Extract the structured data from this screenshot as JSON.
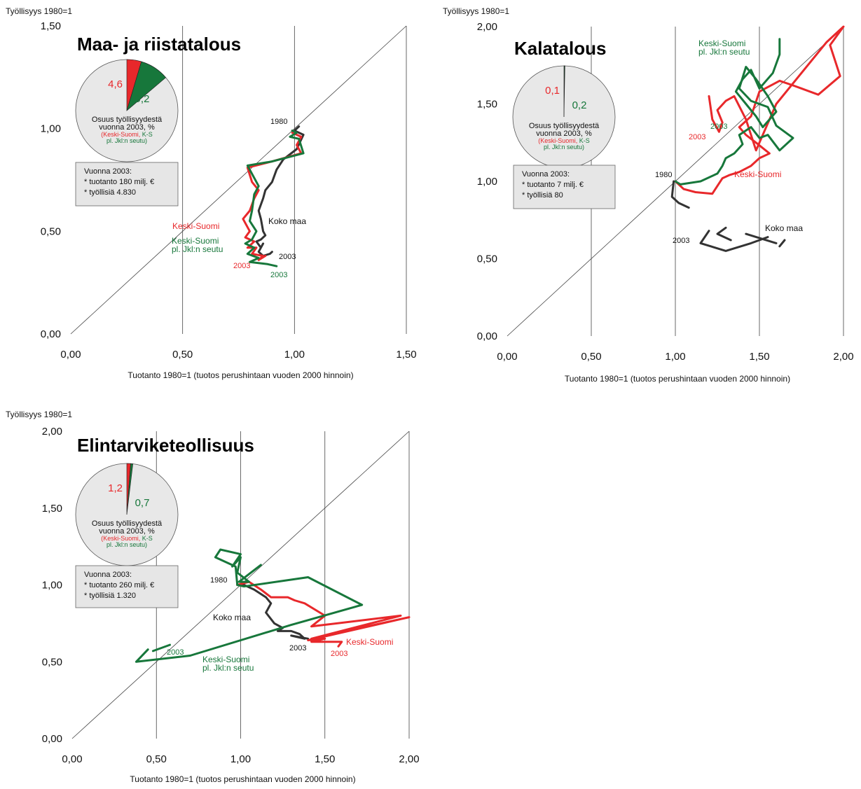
{
  "colors": {
    "red": "#e8282b",
    "green": "#17773b",
    "black": "#333333",
    "pie_bg": "#e8e8e8",
    "info_bg": "#e6e6e6"
  },
  "chart_data": [
    {
      "type": "line",
      "title": "Maa- ja riistatalous",
      "ylabel": "Työllisyys 1980=1",
      "xlabel": "Tuotanto 1980=1 (tuotos perushintaan vuoden 2000 hinnoin)",
      "xlim": [
        0,
        1.5
      ],
      "ylim": [
        0,
        1.5
      ],
      "xticks": [
        "0,00",
        "0,50",
        "1,00",
        "1,50"
      ],
      "yticks": [
        "0,00",
        "0,50",
        "1,00",
        "1,50"
      ],
      "series": [
        {
          "name": "Koko maa",
          "color": "black",
          "start_label": "1980",
          "end_label": "2003",
          "x": [
            1.02,
            1.0,
            1.04,
            1.01,
            0.95,
            0.92,
            0.9,
            0.87,
            0.86,
            0.84,
            0.85,
            0.86,
            0.87,
            0.85,
            0.83,
            0.85,
            0.86,
            0.84,
            0.86,
            0.89,
            0.9
          ],
          "y": [
            1.01,
            0.99,
            0.97,
            0.9,
            0.85,
            0.8,
            0.74,
            0.7,
            0.66,
            0.6,
            0.56,
            0.5,
            0.48,
            0.46,
            0.45,
            0.42,
            0.44,
            0.4,
            0.38,
            0.39,
            0.4
          ]
        },
        {
          "name": "Keski-Suomi",
          "color": "red",
          "end_label": "2003",
          "x": [
            0.99,
            1.03,
            1.01,
            1.03,
            0.9,
            0.79,
            0.81,
            0.84,
            0.82,
            0.8,
            0.77,
            0.8,
            0.78,
            0.82,
            0.79,
            0.83,
            0.81,
            0.86,
            0.84,
            0.87
          ],
          "y": [
            0.98,
            0.96,
            0.92,
            0.88,
            0.84,
            0.81,
            0.74,
            0.7,
            0.66,
            0.6,
            0.56,
            0.5,
            0.47,
            0.45,
            0.42,
            0.42,
            0.39,
            0.38,
            0.36,
            0.38
          ]
        },
        {
          "name": "Keski-Suomi\npl. Jkl:n seutu",
          "color": "green",
          "end_label": "2003",
          "x": [
            0.99,
            1.01,
            0.98,
            1.02,
            1.04,
            0.9,
            0.79,
            0.84,
            0.82,
            0.81,
            0.8,
            0.83,
            0.81,
            0.78,
            0.82,
            0.79,
            0.84,
            0.8,
            0.88,
            0.92
          ],
          "y": [
            0.99,
            0.98,
            0.96,
            0.95,
            0.88,
            0.84,
            0.82,
            0.72,
            0.68,
            0.6,
            0.55,
            0.5,
            0.46,
            0.44,
            0.42,
            0.39,
            0.37,
            0.35,
            0.34,
            0.33
          ]
        }
      ],
      "annotations": {
        "start_year": "1980",
        "koko_maa": "Koko maa",
        "keski_suomi": "Keski-Suomi",
        "keski_suomi_pl_line1": "Keski-Suomi",
        "keski_suomi_pl_line2": "pl. Jkl:n seutu",
        "black_end": "2003",
        "red_end": "2003",
        "green_end": "2003"
      },
      "pie": {
        "red_value": 4.6,
        "green_value": 9.2,
        "red_label": "4,6",
        "green_label": "9,2",
        "caption1": "Osuus työllisyydestä",
        "caption2": "vuonna 2003, %",
        "legend_red": "(Keski-Suomi,",
        "legend_green": "K-S",
        "legend_line2": "pl. Jkl:n seutu)"
      },
      "info": {
        "line1": "Vuonna 2003:",
        "line2": "* tuotanto 180 milj. €",
        "line3": "* työllisiä 4.830"
      }
    },
    {
      "type": "line",
      "title": "Kalatalous",
      "ylabel": "Työllisyys 1980=1",
      "xlabel": "Tuotanto 1980=1 (tuotos perushintaan vuoden 2000 hinnoin)",
      "xlim": [
        0,
        2
      ],
      "ylim": [
        0,
        2
      ],
      "xticks": [
        "0,00",
        "0,50",
        "1,00",
        "1,50",
        "2,00"
      ],
      "yticks": [
        "0,00",
        "0,50",
        "1,00",
        "1,50",
        "2,00"
      ],
      "series": [
        {
          "name": "Keski-Suomi",
          "color": "red",
          "end_label": "2003",
          "x": [
            1.0,
            1.05,
            1.12,
            1.22,
            1.28,
            1.32,
            1.38,
            1.45,
            1.5,
            1.56,
            1.48,
            1.42,
            1.38,
            1.45,
            1.5,
            1.62,
            1.7,
            1.85,
            1.98,
            1.92,
            2.0,
            1.9,
            1.6,
            1.48,
            1.45,
            1.42,
            1.35,
            1.3,
            1.25,
            1.28,
            1.26,
            1.22,
            1.2
          ],
          "y": [
            1.0,
            0.95,
            0.93,
            0.92,
            1.02,
            1.04,
            1.06,
            1.1,
            1.15,
            1.18,
            1.25,
            1.3,
            1.35,
            1.42,
            1.58,
            1.65,
            1.62,
            1.56,
            1.68,
            1.88,
            2.0,
            1.9,
            1.5,
            1.2,
            1.3,
            1.4,
            1.55,
            1.52,
            1.46,
            1.38,
            1.32,
            1.4,
            1.55
          ]
        },
        {
          "name": "Keski-Suomi\npl. Jkl:n seutu",
          "color": "green",
          "end_label": "2003",
          "x": [
            1.0,
            1.03,
            1.15,
            1.25,
            1.28,
            1.3,
            1.35,
            1.4,
            1.38,
            1.45,
            1.5,
            1.55,
            1.62,
            1.7,
            1.6,
            1.55,
            1.45,
            1.38,
            1.42,
            1.48,
            1.55,
            1.6,
            1.52,
            1.48,
            1.42,
            1.36,
            1.4,
            1.45,
            1.5,
            1.58,
            1.62,
            1.62
          ],
          "y": [
            1.0,
            0.98,
            1.0,
            1.05,
            1.1,
            1.15,
            1.18,
            1.24,
            1.3,
            1.35,
            1.28,
            1.3,
            1.2,
            1.28,
            1.36,
            1.48,
            1.52,
            1.6,
            1.74,
            1.66,
            1.55,
            1.45,
            1.35,
            1.42,
            1.5,
            1.58,
            1.66,
            1.72,
            1.6,
            1.7,
            1.82,
            1.92
          ]
        },
        {
          "name": "Koko maa",
          "color": "black",
          "start_label": "1980",
          "end_label": "2003",
          "x": [
            0.99,
            0.98,
            1.02,
            1.08,
            1.3,
            1.25,
            1.33,
            1.2,
            1.15,
            1.3,
            1.45,
            1.55,
            1.6,
            1.42,
            1.65,
            1.62
          ],
          "y": [
            1.0,
            0.9,
            0.86,
            0.83,
            0.7,
            0.66,
            0.62,
            0.68,
            0.6,
            0.55,
            0.6,
            0.64,
            0.6,
            0.66,
            0.62,
            0.58
          ],
          "breaks": [
            3,
            6,
            11,
            13
          ]
        }
      ],
      "annotations": {
        "start_year": "1980",
        "koko_maa": "Koko maa",
        "keski_suomi": "Keski-Suomi",
        "keski_suomi_pl_line1": "Keski-Suomi",
        "keski_suomi_pl_line2": "pl. Jkl:n seutu",
        "black_end": "2003",
        "red_end": "2003",
        "green_end": "2003"
      },
      "pie": {
        "red_value": 0.1,
        "green_value": 0.2,
        "red_label": "0,1",
        "green_label": "0,2",
        "caption1": "Osuus työllisyydestä",
        "caption2": "vuonna 2003, %",
        "legend_red": "(Keski-Suomi,",
        "legend_green": "K-S",
        "legend_line2": "pl. Jkl:n seutu)"
      },
      "info": {
        "line1": "Vuonna 2003:",
        "line2": "* tuotanto 7 milj. €",
        "line3": "* työllisiä 80"
      }
    },
    {
      "type": "line",
      "title": "Elintarviketeollisuus",
      "ylabel": "Työllisyys 1980=1",
      "xlabel": "Tuotanto 1980=1 (tuotos perushintaan vuoden 2000 hinnoin)",
      "xlim": [
        0,
        2
      ],
      "ylim": [
        0,
        2
      ],
      "xticks": [
        "0,00",
        "0,50",
        "1,00",
        "1,50",
        "2,00"
      ],
      "yticks": [
        "0,00",
        "0,50",
        "1,00",
        "1,50",
        "2,00"
      ],
      "series": [
        {
          "name": "Koko maa",
          "color": "black",
          "start_label": "1980",
          "end_label": "2003",
          "x": [
            0.98,
            1.02,
            1.08,
            1.15,
            1.18,
            1.15,
            1.2,
            1.25,
            1.22,
            1.3,
            1.35,
            1.38,
            1.3,
            1.4
          ],
          "y": [
            1.0,
            1.0,
            0.97,
            0.92,
            0.88,
            0.82,
            0.75,
            0.72,
            0.7,
            0.7,
            0.68,
            0.65,
            0.67,
            0.65
          ]
        },
        {
          "name": "Keski-Suomi",
          "color": "red",
          "end_label": "2003",
          "x": [
            0.98,
            1.05,
            1.12,
            1.18,
            1.28,
            1.32,
            1.38,
            1.5,
            1.42,
            1.95,
            1.42,
            2.0,
            1.4,
            1.5,
            1.42,
            1.6,
            1.58
          ],
          "y": [
            1.0,
            1.02,
            0.97,
            0.92,
            0.92,
            0.9,
            0.88,
            0.8,
            0.73,
            0.8,
            0.65,
            0.79,
            0.64,
            0.65,
            0.63,
            0.63,
            0.6
          ]
        },
        {
          "name": "Keski-Suomi\npl. Jkl:n seutu",
          "color": "green",
          "end_label": "2003",
          "x": [
            1.12,
            0.99,
            1.05,
            0.98,
            1.0,
            0.95,
            1.0,
            0.88,
            0.85,
            0.97,
            0.98,
            1.02,
            1.4,
            1.72,
            1.3,
            0.7,
            0.38,
            0.45,
            0.58,
            0.48
          ],
          "y": [
            1.13,
            1.02,
            1.02,
            1.08,
            1.18,
            1.12,
            1.2,
            1.23,
            1.18,
            1.12,
            1.0,
            0.99,
            1.05,
            0.87,
            0.74,
            0.54,
            0.5,
            0.58,
            0.61,
            0.57
          ],
          "breaks": [
            17
          ]
        }
      ],
      "annotations": {
        "start_year": "1980",
        "koko_maa": "Koko maa",
        "keski_suomi": "Keski-Suomi",
        "keski_suomi_pl_line1": "Keski-Suomi",
        "keski_suomi_pl_line2": "pl. Jkl:n seutu",
        "black_end": "2003",
        "red_end": "2003",
        "green_end": "2003"
      },
      "pie": {
        "red_value": 1.2,
        "green_value": 0.7,
        "red_label": "1,2",
        "green_label": "0,7",
        "caption1": "Osuus työllisyydestä",
        "caption2": "vuonna 2003, %",
        "legend_red": "(Keski-Suomi,",
        "legend_green": "K-S",
        "legend_line2": "pl. Jkl:n seutu)"
      },
      "info": {
        "line1": "Vuonna 2003:",
        "line2": "* tuotanto 260 milj. €",
        "line3": "* työllisiä 1.320"
      }
    }
  ]
}
